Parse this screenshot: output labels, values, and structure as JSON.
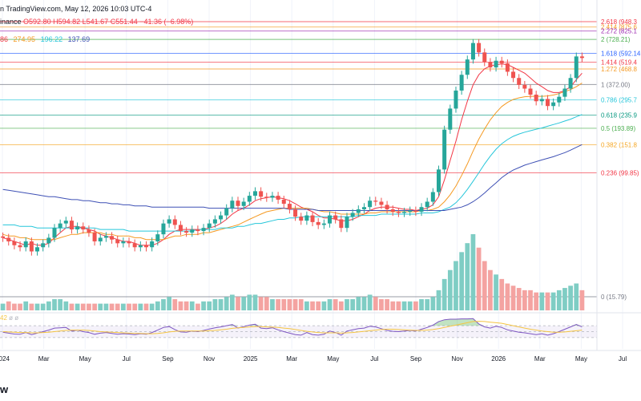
{
  "header": {
    "published_line": "n TradingView.com, May 12, 2026 10:03 UTC-4",
    "symbol_source": "inance",
    "ohlc": {
      "o": "O592.80",
      "h": "H594.82",
      "l": "L541.67",
      "c": "C551.44",
      "chg": "−41.36 (−6.98%)"
    },
    "ma_values": [
      "86",
      "274.95",
      "196.22",
      "137.69"
    ]
  },
  "rsi_header": {
    "value_a": "42",
    "icon": "ø",
    "value_b": "ø"
  },
  "brand": "w",
  "colors": {
    "up": "#26a69a",
    "down": "#ef5350",
    "ma_fast": "#f23645",
    "ma_mid": "#f59a23",
    "ma_slow": "#26c6da",
    "ma_long": "#3f51b5",
    "rsi": "#7e57c2",
    "rsi_ma": "#f5c542"
  },
  "chart_data": [
    {
      "type": "candlestick",
      "x_tick_labels": [
        "2024",
        "Mar",
        "May",
        "Jul",
        "Sep",
        "Nov",
        "2025",
        "Mar",
        "May",
        "Jul",
        "Sep",
        "Nov",
        "2026",
        "Mar",
        "May",
        "Jul"
      ],
      "y_scale": "log",
      "fibonacci_levels": [
        {
          "ratio": "2.618",
          "value": 948.36,
          "label": "2.618 (948.3"
        },
        {
          "ratio": "2.414",
          "value": 875.66,
          "label": "2.414 (875.6"
        },
        {
          "ratio": "2.272",
          "value": 825.1,
          "label": "2.272 (825.1"
        },
        {
          "ratio": "2",
          "value": 728.21,
          "label": "2 (728.21)"
        },
        {
          "ratio": "1.618",
          "value": 592.14,
          "label": "1.618 (592.14"
        },
        {
          "ratio": "1.414",
          "value": 519.43,
          "label": "1.414 (519.4"
        },
        {
          "ratio": "1.272",
          "value": 468.89,
          "label": "1.272 (468.8"
        },
        {
          "ratio": "1",
          "value": 372.0,
          "label": "1 (372.00)"
        },
        {
          "ratio": "0.786",
          "value": 295.73,
          "label": "0.786 (295.7"
        },
        {
          "ratio": "0.618",
          "value": 235.93,
          "label": "0.618 (235.9"
        },
        {
          "ratio": "0.5",
          "value": 193.89,
          "label": "0.5 (193.89)"
        },
        {
          "ratio": "0.382",
          "value": 151.86,
          "label": "0.382 (151.8"
        },
        {
          "ratio": "0.236",
          "value": 99.85,
          "label": "0.236 (99.85)"
        },
        {
          "ratio": "0",
          "value": 15.79,
          "label": "0 (15.79)"
        }
      ],
      "candles_close": [
        38,
        36,
        34,
        33,
        36,
        31,
        33,
        35,
        38,
        44,
        47,
        49,
        43,
        45,
        43,
        41,
        36,
        38,
        39,
        37,
        35,
        36,
        35,
        33,
        34,
        33,
        36,
        40,
        47,
        50,
        46,
        42,
        41,
        43,
        42,
        44,
        47,
        50,
        53,
        59,
        66,
        61,
        65,
        71,
        76,
        70,
        69,
        71,
        67,
        63,
        58,
        52,
        49,
        53,
        48,
        46,
        47,
        53,
        50,
        44,
        52,
        55,
        58,
        60,
        66,
        65,
        62,
        58,
        56,
        55,
        56,
        57,
        56,
        60,
        65,
        75,
        105,
        190,
        260,
        340,
        430,
        540,
        690,
        600,
        520,
        480,
        530,
        510,
        450,
        410,
        370,
        350,
        320,
        290,
        300,
        270,
        285,
        310,
        350,
        410,
        565,
        552
      ],
      "ma_series": [
        {
          "name": "ma_fast",
          "values": [
            38,
            37,
            36,
            35,
            34,
            35,
            34,
            34,
            35,
            38,
            41,
            44,
            45,
            45,
            44,
            43,
            42,
            40,
            39,
            38,
            37,
            36,
            36,
            35,
            34,
            34,
            34,
            35,
            37,
            40,
            42,
            43,
            43,
            43,
            43,
            43,
            44,
            45,
            47,
            50,
            54,
            57,
            59,
            62,
            66,
            68,
            69,
            70,
            69,
            68,
            66,
            63,
            60,
            58,
            56,
            53,
            51,
            51,
            50,
            49,
            49,
            50,
            52,
            54,
            57,
            59,
            60,
            60,
            60,
            59,
            58,
            58,
            57,
            58,
            59,
            62,
            70,
            90,
            120,
            160,
            220,
            290,
            370,
            430,
            470,
            490,
            500,
            505,
            500,
            480,
            460,
            440,
            410,
            380,
            360,
            340,
            330,
            330,
            340,
            360,
            400,
            440
          ]
        },
        {
          "name": "ma_mid",
          "values": [
            40,
            39,
            39,
            38,
            38,
            37,
            37,
            37,
            37,
            37,
            38,
            39,
            40,
            40,
            41,
            41,
            41,
            41,
            40,
            40,
            39,
            39,
            39,
            38,
            38,
            37,
            37,
            37,
            37,
            38,
            39,
            39,
            40,
            40,
            40,
            41,
            41,
            42,
            43,
            44,
            45,
            46,
            48,
            50,
            52,
            54,
            56,
            57,
            58,
            59,
            59,
            59,
            59,
            59,
            58,
            57,
            56,
            56,
            55,
            54,
            54,
            54,
            54,
            54,
            55,
            55,
            56,
            56,
            56,
            56,
            56,
            56,
            56,
            57,
            57,
            58,
            60,
            65,
            72,
            82,
            96,
            114,
            138,
            165,
            192,
            220,
            245,
            268,
            285,
            298,
            305,
            310,
            312,
            312,
            312,
            314,
            318,
            325,
            335,
            345,
            360,
            380
          ]
        },
        {
          "name": "ma_slow",
          "values": [
            46,
            46,
            46,
            45,
            45,
            45,
            44,
            44,
            44,
            44,
            44,
            44,
            44,
            44,
            44,
            44,
            44,
            43,
            43,
            43,
            43,
            43,
            42,
            42,
            42,
            42,
            42,
            42,
            42,
            42,
            42,
            42,
            42,
            42,
            43,
            43,
            43,
            43,
            44,
            44,
            44,
            45,
            45,
            46,
            47,
            47,
            48,
            49,
            50,
            50,
            51,
            51,
            52,
            52,
            52,
            52,
            52,
            52,
            52,
            52,
            52,
            52,
            53,
            53,
            53,
            53,
            54,
            54,
            54,
            54,
            54,
            54,
            54,
            55,
            55,
            55,
            56,
            58,
            60,
            64,
            70,
            78,
            88,
            100,
            114,
            128,
            142,
            154,
            164,
            172,
            178,
            183,
            187,
            191,
            195,
            200,
            205,
            210,
            216,
            222,
            230,
            238
          ]
        },
        {
          "name": "ma_long",
          "values": [
            78,
            77,
            76,
            75,
            74,
            73,
            72,
            71,
            70,
            70,
            69,
            68,
            67,
            67,
            66,
            66,
            65,
            64,
            64,
            63,
            63,
            62,
            62,
            61,
            61,
            61,
            60,
            60,
            60,
            60,
            60,
            60,
            60,
            60,
            60,
            60,
            59,
            59,
            59,
            59,
            59,
            59,
            59,
            59,
            59,
            59,
            59,
            59,
            59,
            59,
            58,
            58,
            58,
            58,
            58,
            57,
            57,
            57,
            57,
            57,
            57,
            57,
            57,
            57,
            57,
            57,
            57,
            57,
            57,
            57,
            57,
            57,
            57,
            57,
            57,
            57,
            57,
            57,
            58,
            59,
            60,
            62,
            65,
            69,
            74,
            80,
            86,
            93,
            99,
            104,
            108,
            112,
            115,
            118,
            121,
            124,
            127,
            131,
            135,
            140,
            146,
            152
          ]
        }
      ]
    },
    {
      "type": "bar",
      "name": "volume",
      "values": [
        3,
        4,
        3,
        3,
        4,
        3,
        3,
        3,
        4,
        5,
        5,
        4,
        3,
        3,
        3,
        3,
        3,
        3,
        3,
        3,
        3,
        3,
        3,
        3,
        3,
        3,
        3,
        4,
        5,
        6,
        5,
        4,
        4,
        4,
        3,
        4,
        4,
        5,
        5,
        6,
        7,
        6,
        6,
        7,
        7,
        6,
        6,
        5,
        5,
        5,
        5,
        5,
        5,
        4,
        4,
        4,
        4,
        5,
        5,
        4,
        5,
        5,
        6,
        6,
        7,
        6,
        5,
        5,
        4,
        4,
        4,
        4,
        4,
        5,
        5,
        6,
        9,
        14,
        18,
        22,
        26,
        30,
        34,
        28,
        22,
        18,
        16,
        14,
        12,
        11,
        10,
        9,
        9,
        8,
        8,
        8,
        8,
        9,
        10,
        11,
        12,
        9
      ]
    },
    {
      "type": "line",
      "name": "rsi",
      "values": [
        48,
        45,
        42,
        41,
        47,
        40,
        45,
        50,
        55,
        62,
        63,
        64,
        52,
        55,
        50,
        47,
        41,
        45,
        47,
        44,
        41,
        43,
        42,
        40,
        43,
        41,
        47,
        55,
        64,
        67,
        57,
        49,
        48,
        52,
        50,
        54,
        59,
        63,
        66,
        70,
        74,
        62,
        67,
        72,
        75,
        62,
        60,
        63,
        56,
        50,
        45,
        40,
        38,
        47,
        40,
        38,
        41,
        52,
        47,
        38,
        52,
        56,
        60,
        62,
        68,
        66,
        60,
        54,
        51,
        50,
        52,
        54,
        52,
        58,
        64,
        72,
        84,
        90,
        92,
        92,
        93,
        93,
        94,
        76,
        66,
        62,
        68,
        64,
        56,
        52,
        48,
        46,
        43,
        40,
        43,
        38,
        43,
        50,
        58,
        66,
        74,
        66
      ],
      "ma_values": [
        50,
        49,
        48,
        47,
        47,
        46,
        46,
        47,
        48,
        50,
        52,
        54,
        55,
        55,
        55,
        54,
        52,
        50,
        49,
        48,
        47,
        46,
        45,
        44,
        44,
        43,
        43,
        44,
        46,
        49,
        51,
        52,
        52,
        52,
        52,
        52,
        53,
        54,
        56,
        58,
        61,
        63,
        64,
        66,
        67,
        67,
        66,
        65,
        64,
        62,
        60,
        57,
        54,
        51,
        49,
        47,
        46,
        46,
        46,
        45,
        46,
        47,
        49,
        51,
        53,
        55,
        57,
        58,
        58,
        57,
        56,
        55,
        54,
        54,
        55,
        57,
        60,
        64,
        68,
        72,
        76,
        80,
        84,
        85,
        84,
        82,
        80,
        78,
        74,
        70,
        66,
        62,
        58,
        55,
        52,
        50,
        48,
        48,
        49,
        51,
        53,
        55
      ]
    }
  ]
}
